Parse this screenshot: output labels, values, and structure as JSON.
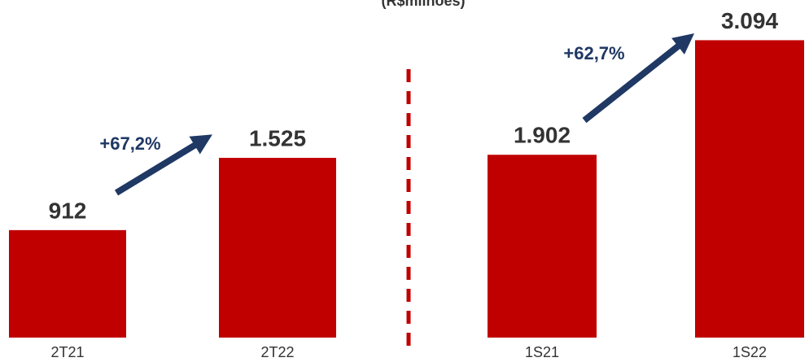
{
  "title": "(R$milhões)",
  "chart_data": [
    {
      "type": "bar",
      "categories": [
        "2T21",
        "2T22"
      ],
      "values": [
        912,
        1525
      ],
      "value_labels": [
        "912",
        "1.525"
      ],
      "color": "#c00000",
      "ylim": [
        0,
        2830
      ],
      "annotation": "+67,2%"
    },
    {
      "type": "bar",
      "categories": [
        "1S21",
        "1S22"
      ],
      "values": [
        1902,
        3094
      ],
      "value_labels": [
        "1.902",
        "3.094"
      ],
      "color": "#c00000",
      "ylim": [
        0,
        3470
      ],
      "annotation": "+62,7%"
    }
  ]
}
